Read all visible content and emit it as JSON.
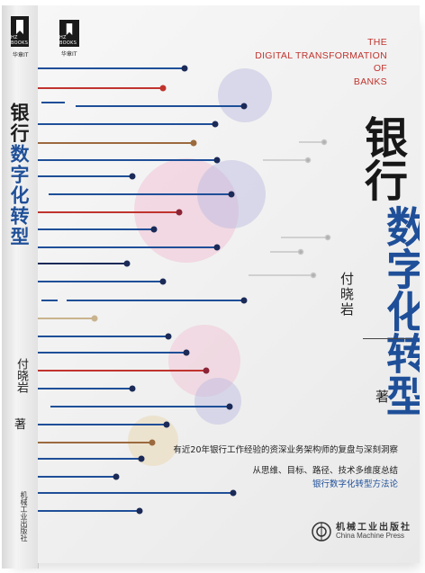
{
  "book": {
    "publisher_series": "华章IT",
    "logo_brand": "HZ BOOKS",
    "title_line1": "银行",
    "title_line2": "数字化转型",
    "english_title_lines": [
      "THE",
      "DIGITAL TRANSFORMATION",
      "OF",
      "BANKS"
    ],
    "author": "付晓岩",
    "author_suffix": "著",
    "tagline": "有近20年银行工作经验的资深业务架构师的复盘与深刻洞察",
    "subtitle_line1": "从思维、目标、路径、技术多维度总结",
    "subtitle_line2": "银行数字化转型方法论",
    "publisher_cn": "机械工业出版社",
    "publisher_en": "China Machine Press"
  },
  "colors": {
    "accent_blue": "#1f4f98",
    "accent_red": "#c0342e",
    "line_brown": "#9b6a3e",
    "line_dark": "#1b2a57",
    "circle_purple": "#b8b7e0",
    "circle_pink": "#f1c3d5",
    "circle_tan": "#e9d8b4"
  }
}
